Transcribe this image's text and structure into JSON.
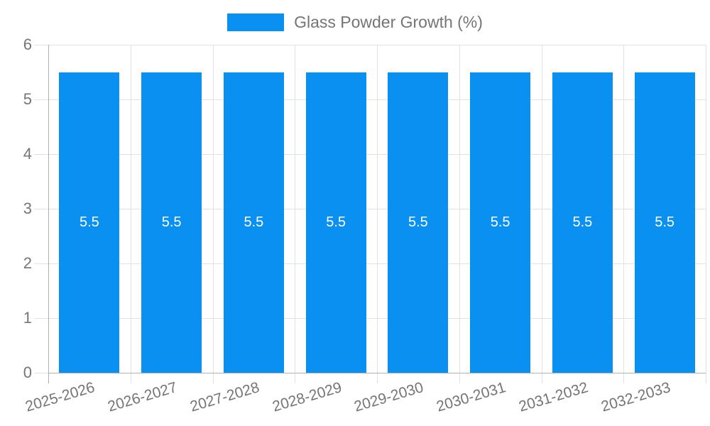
{
  "chart_data": {
    "type": "bar",
    "legend": {
      "label": "Glass Powder Growth (%)",
      "position": "top"
    },
    "categories": [
      "2025-2026",
      "2026-2027",
      "2027-2028",
      "2028-2029",
      "2029-2030",
      "2030-2031",
      "2031-2032",
      "2032-2033"
    ],
    "series": [
      {
        "name": "Glass Powder Growth (%)",
        "values": [
          5.5,
          5.5,
          5.5,
          5.5,
          5.5,
          5.5,
          5.5,
          5.5
        ],
        "bar_labels": [
          "5.5",
          "5.5",
          "5.5",
          "5.5",
          "5.5",
          "5.5",
          "5.5",
          "5.5"
        ]
      }
    ],
    "xlabel": "",
    "ylabel": "",
    "ylim": [
      0,
      6
    ],
    "yticks": [
      "0",
      "1",
      "2",
      "3",
      "4",
      "5",
      "6"
    ],
    "grid": true,
    "colors": {
      "bar": "#0a90f1",
      "grid": "#e2e2e2",
      "axis": "#b0b0b0",
      "text": "#757575",
      "bar_label": "#ffffff"
    }
  }
}
